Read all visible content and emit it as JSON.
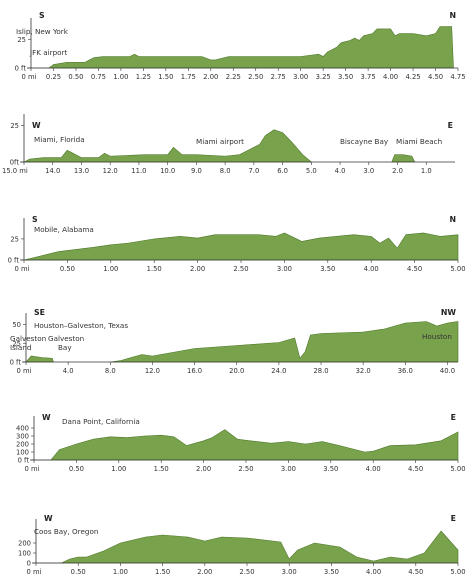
{
  "colors": {
    "terrain": "#79a24d",
    "terrain_edge": "#4f7a2b",
    "axis": "#333333",
    "text": "#333333"
  },
  "chart_data": [
    {
      "type": "area",
      "start_dir": "S",
      "end_dir": "N",
      "places": [
        "Islip, New York",
        "JFK airport"
      ],
      "xlim": [
        0,
        4.75
      ],
      "ylim": [
        0,
        40
      ],
      "x_tick_labels": [
        "0 mi",
        "0.25",
        "0.50",
        "0.75",
        "1.00",
        "1.25",
        "1.50",
        "1.75",
        "2.00",
        "2.25",
        "2.50",
        "2.75",
        "3.00",
        "3.25",
        "3.50",
        "3.75",
        "4.00",
        "4.25",
        "4.50",
        "4.75"
      ],
      "y_tick_labels": [
        "0 ft",
        "25"
      ],
      "y_ticks": [
        0,
        25
      ],
      "x": [
        0,
        0.2,
        0.25,
        0.4,
        0.5,
        0.6,
        0.65,
        0.7,
        0.8,
        1.0,
        1.1,
        1.15,
        1.2,
        1.5,
        1.9,
        2.0,
        2.05,
        2.2,
        2.5,
        2.75,
        3.0,
        3.2,
        3.25,
        3.3,
        3.4,
        3.45,
        3.55,
        3.6,
        3.65,
        3.7,
        3.8,
        3.85,
        4.0,
        4.05,
        4.1,
        4.25,
        4.4,
        4.5,
        4.55,
        4.68,
        4.7
      ],
      "y": [
        0,
        0,
        3,
        5,
        5,
        5,
        7,
        9,
        10,
        10,
        10,
        12,
        10,
        10,
        10,
        7,
        7,
        10,
        10,
        10,
        10,
        12,
        10,
        14,
        18,
        22,
        24,
        26,
        24,
        28,
        30,
        34,
        34,
        28,
        30,
        30,
        28,
        30,
        36,
        36,
        0
      ]
    },
    {
      "type": "area",
      "start_dir": "W",
      "end_dir": "E",
      "places": [
        "Miami, Florida",
        "Miami airport",
        "Biscayne Bay",
        "Miami Beach"
      ],
      "xlim": [
        15.0,
        0.0
      ],
      "ylim": [
        0,
        30
      ],
      "x_tick_labels": [
        "15.0 mi",
        "14.0",
        "13.0",
        "12.0",
        "11.0",
        "10.0",
        "9.0",
        "8.0",
        "7.0",
        "6.0",
        "5.0",
        "4.0",
        "3.0",
        "2.0",
        "1.0"
      ],
      "y_tick_labels": [
        "0ft",
        "25"
      ],
      "y_ticks": [
        0,
        25
      ],
      "x": [
        15.0,
        14.8,
        14.3,
        13.7,
        13.5,
        13.3,
        13.0,
        12.4,
        12.2,
        12.0,
        10.8,
        10.0,
        9.8,
        9.5,
        9.0,
        8.0,
        7.5,
        7.2,
        6.8,
        6.6,
        6.3,
        6.0,
        5.7,
        5.3,
        5.0
      ],
      "y": [
        0,
        2,
        3,
        3,
        8,
        6,
        3,
        3,
        6,
        4,
        5,
        5,
        10,
        5,
        5,
        4,
        5,
        8,
        12,
        18,
        22,
        20,
        14,
        5,
        0
      ],
      "x2": [
        2.2,
        2.1,
        1.8,
        1.5,
        1.4
      ],
      "y2": [
        0,
        5,
        5,
        4,
        0
      ]
    },
    {
      "type": "area",
      "start_dir": "S",
      "end_dir": "N",
      "places": [
        "Mobile, Alabama"
      ],
      "xlim": [
        0,
        5.0
      ],
      "ylim": [
        0,
        45
      ],
      "x_tick_labels": [
        "0 mi",
        "0.50",
        "1.00",
        "1.50",
        "2.00",
        "2.50",
        "3.00",
        "3.50",
        "4.00",
        "4.50",
        "5.00"
      ],
      "y_tick_labels": [
        "0 ft",
        "25"
      ],
      "y_ticks": [
        0,
        25
      ],
      "x": [
        0,
        0.4,
        0.8,
        1.0,
        1.2,
        1.5,
        1.8,
        2.0,
        2.2,
        2.5,
        2.7,
        2.9,
        3.0,
        3.1,
        3.2,
        3.4,
        3.6,
        3.8,
        4.0,
        4.1,
        4.2,
        4.3,
        4.4,
        4.6,
        4.8,
        5.0
      ],
      "y": [
        0,
        10,
        15,
        18,
        20,
        25,
        28,
        26,
        30,
        30,
        30,
        28,
        32,
        27,
        22,
        26,
        28,
        30,
        28,
        20,
        26,
        14,
        30,
        32,
        28,
        30
      ]
    },
    {
      "type": "area",
      "start_dir": "SE",
      "end_dir": "NW",
      "places": [
        "Houston–Galveston, Texas",
        "Galveston Island",
        "Galveston Bay",
        "Houston"
      ],
      "xlim": [
        0,
        41.0
      ],
      "ylim": [
        0,
        60
      ],
      "x_tick_labels": [
        "0 mi",
        "4.0",
        "8.0",
        "12.0",
        "16.0",
        "20.0",
        "24.0",
        "28.0",
        "32.0",
        "36.0",
        "40.0"
      ],
      "y_tick_labels": [
        "0 ft",
        "25",
        "50"
      ],
      "y_ticks": [
        0,
        25,
        50
      ],
      "x": [
        0,
        0.5,
        1.5,
        2.5,
        2.6
      ],
      "y": [
        0,
        8,
        6,
        5,
        0
      ],
      "x2": [
        8.0,
        9.0,
        11.0,
        12.0,
        16.0,
        20.0,
        24.0,
        25.5,
        26.0,
        26.5,
        27.0,
        28.0,
        32.0,
        34.0,
        36.0,
        38.0,
        39.0,
        40.0,
        41.0
      ],
      "y2": [
        0,
        2,
        10,
        8,
        18,
        22,
        26,
        32,
        5,
        14,
        36,
        38,
        40,
        44,
        52,
        54,
        48,
        52,
        54
      ]
    },
    {
      "type": "area",
      "start_dir": "W",
      "end_dir": "E",
      "places": [
        "Dana Point, California"
      ],
      "xlim": [
        0,
        5.0
      ],
      "ylim": [
        0,
        500
      ],
      "x_tick_labels": [
        "0 mi",
        "0.50",
        "1.00",
        "1.50",
        "2.00",
        "2.50",
        "3.00",
        "3.50",
        "4.00",
        "4.50",
        "5.00"
      ],
      "y_tick_labels": [
        "0 ft",
        "100",
        "200",
        "300",
        "400"
      ],
      "y_ticks": [
        0,
        100,
        200,
        300,
        400
      ],
      "x": [
        0,
        0.2,
        0.3,
        0.5,
        0.7,
        0.9,
        1.1,
        1.3,
        1.5,
        1.65,
        1.8,
        2.0,
        2.1,
        2.25,
        2.4,
        2.55,
        2.8,
        3.0,
        3.2,
        3.4,
        3.6,
        3.9,
        4.0,
        4.2,
        4.5,
        4.8,
        5.0
      ],
      "y": [
        0,
        0,
        130,
        200,
        260,
        290,
        280,
        300,
        310,
        290,
        180,
        240,
        280,
        380,
        260,
        240,
        210,
        230,
        200,
        230,
        180,
        100,
        110,
        180,
        190,
        240,
        350
      ]
    },
    {
      "type": "area",
      "start_dir": "W",
      "end_dir": "E",
      "places": [
        "Coos Bay, Oregon"
      ],
      "xlim": [
        0,
        5.0
      ],
      "ylim": [
        0,
        400
      ],
      "x_tick_labels": [
        "0 mi",
        "0.50",
        "1.00",
        "1.50",
        "2.00",
        "2.50",
        "3.00",
        "3.50",
        "4.00",
        "4.50",
        "5.00"
      ],
      "y_tick_labels": [
        "0",
        "100",
        "200"
      ],
      "y_ticks": [
        0,
        100,
        200
      ],
      "x": [
        0,
        0.3,
        0.4,
        0.5,
        0.6,
        0.8,
        1.0,
        1.3,
        1.5,
        1.8,
        2.0,
        2.2,
        2.5,
        2.9,
        3.0,
        3.1,
        3.3,
        3.6,
        3.8,
        4.0,
        4.2,
        4.4,
        4.6,
        4.8,
        5.0
      ],
      "y": [
        0,
        0,
        40,
        60,
        60,
        120,
        200,
        260,
        280,
        260,
        220,
        260,
        250,
        210,
        40,
        130,
        200,
        160,
        60,
        20,
        60,
        40,
        100,
        320,
        130
      ]
    }
  ]
}
